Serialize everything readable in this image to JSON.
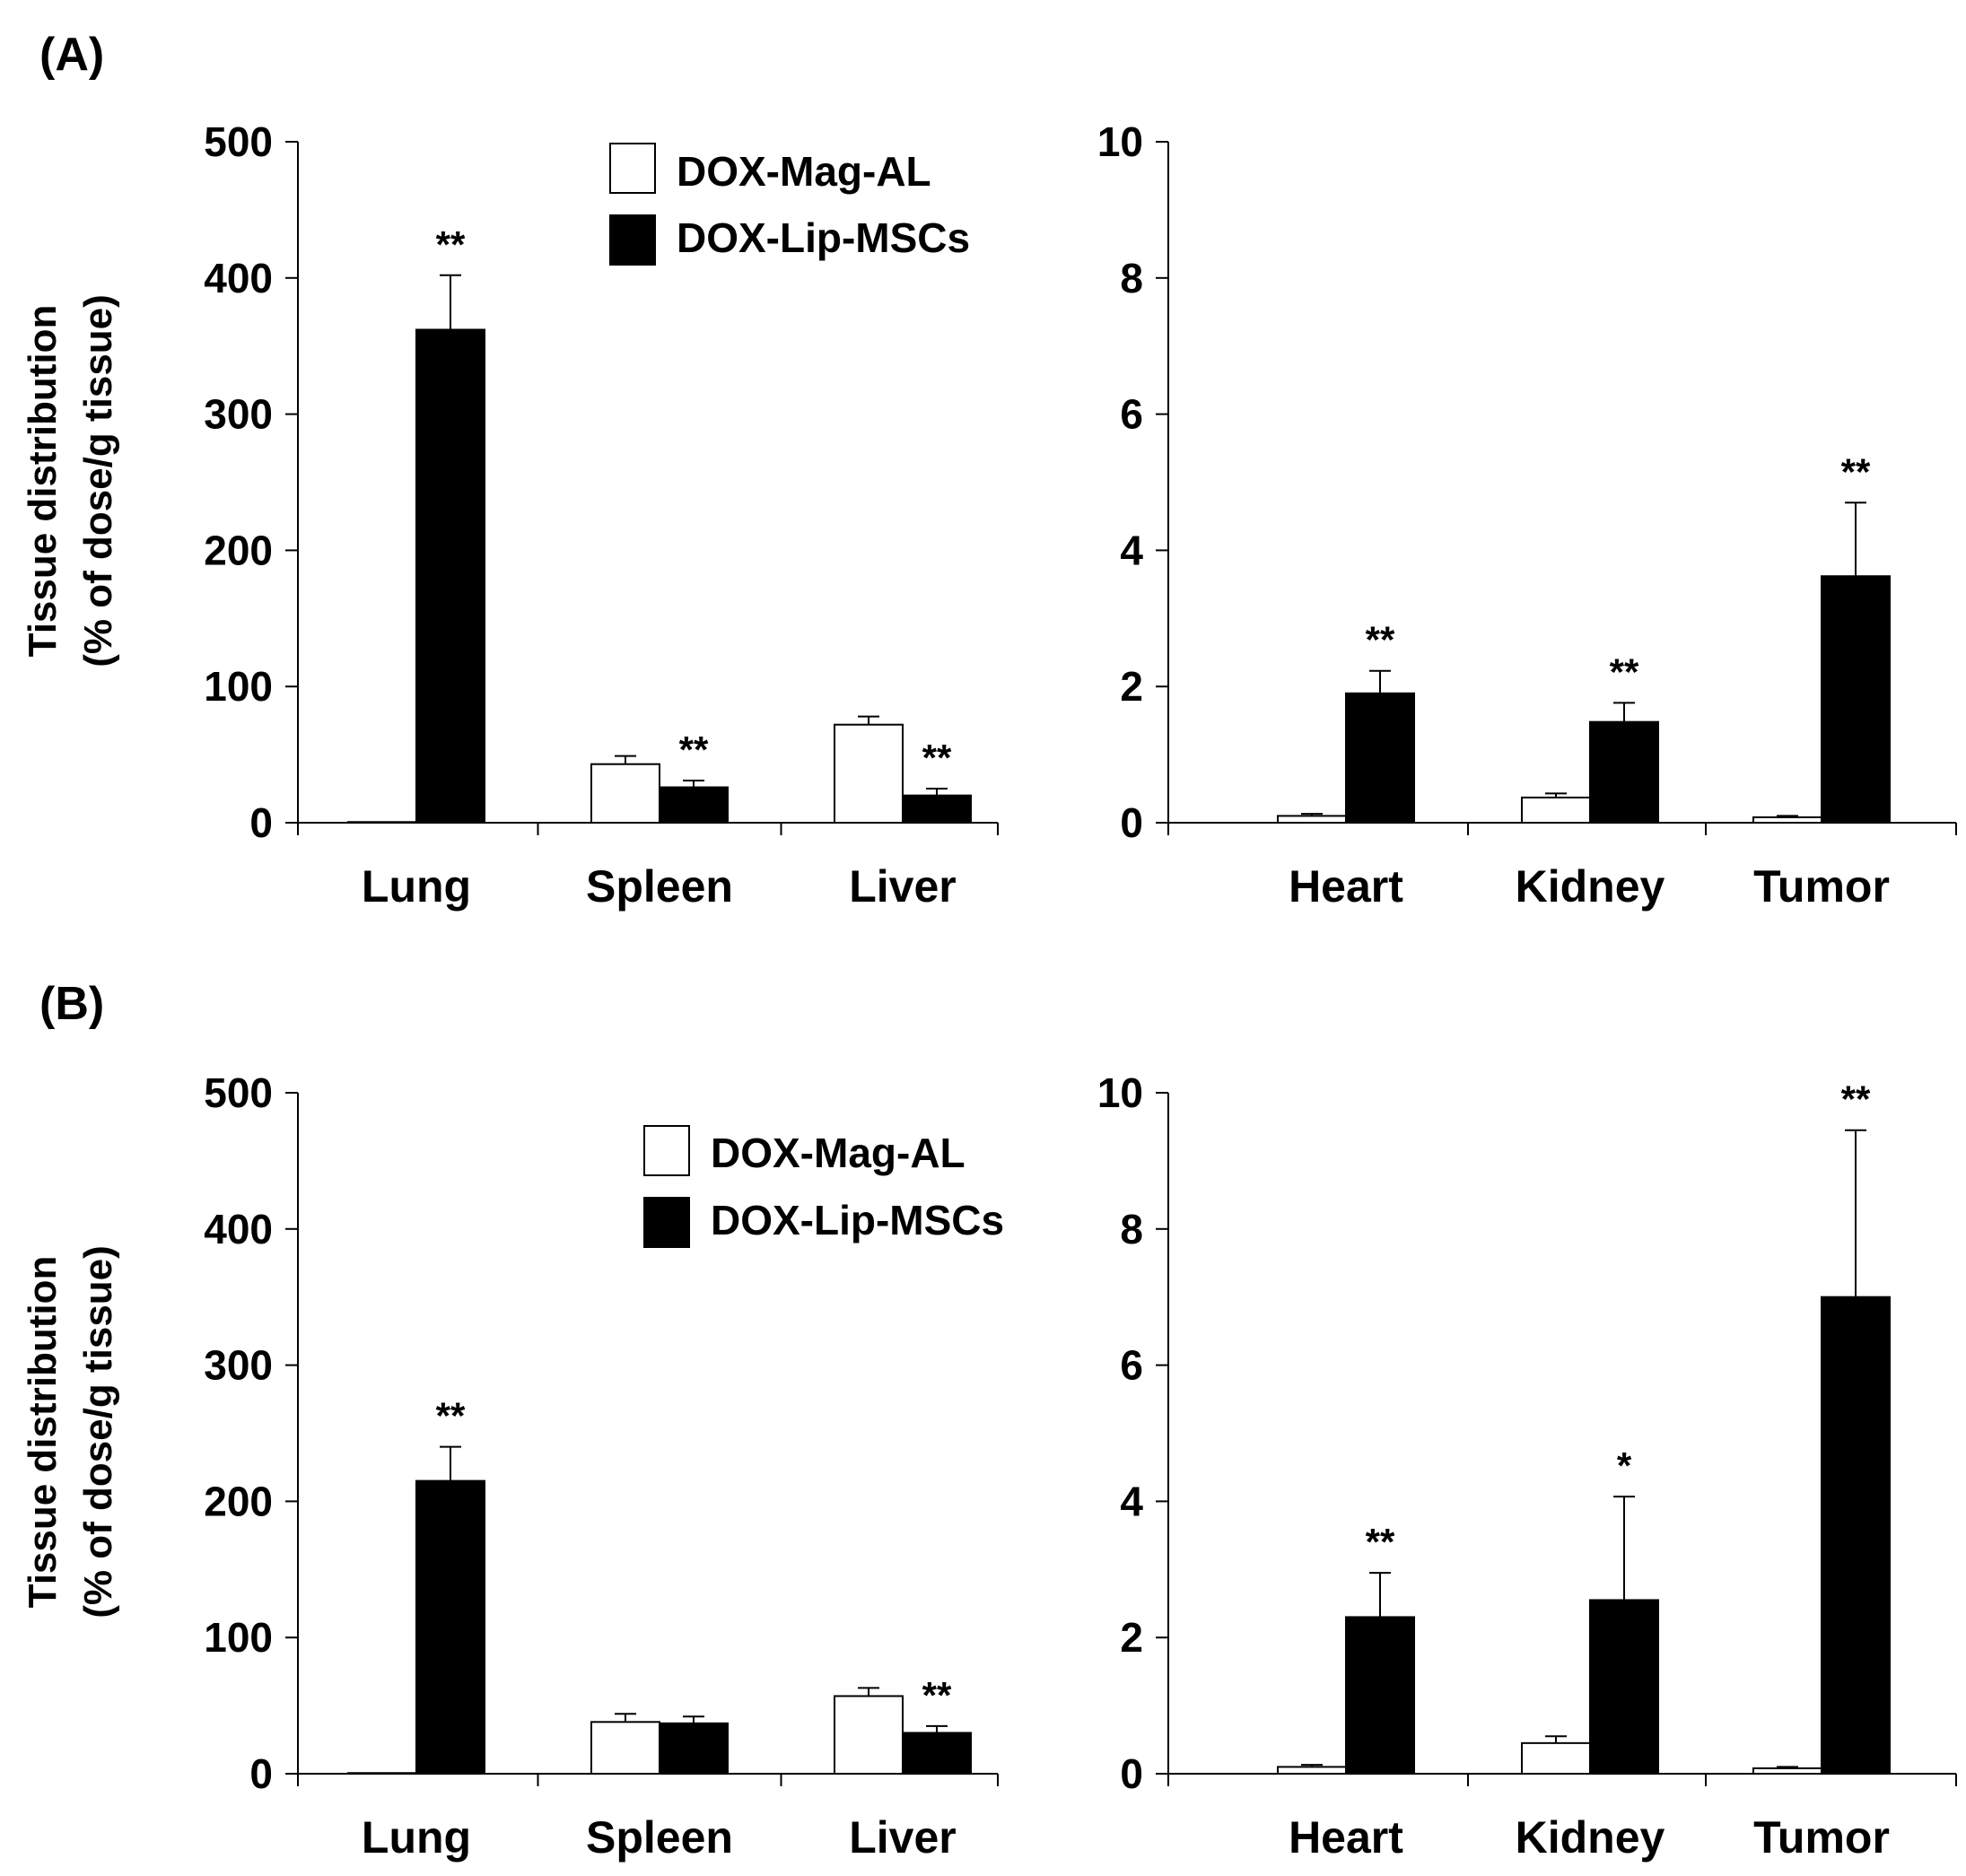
{
  "figure": {
    "panels": [
      {
        "label": "(A)",
        "ylabel_line1": "Tissue distribution",
        "ylabel_line2": "(% of dose/g tissue)"
      },
      {
        "label": "(B)",
        "ylabel_line1": "Tissue distribution",
        "ylabel_line2": "(% of dose/g tissue)"
      }
    ],
    "colors": {
      "DOX-Mag-AL": "#ffffff",
      "DOX-Lip-MSCs": "#000000",
      "axis": "#000000"
    }
  },
  "chart_data": [
    {
      "type": "bar",
      "panel": "A",
      "subplot": "left",
      "title": "",
      "xlabel": "",
      "ylabel": "Tissue distribution (% of dose/g tissue)",
      "categories": [
        "Lung",
        "Spleen",
        "Liver"
      ],
      "ylim": [
        0,
        500
      ],
      "yticks": [
        "0",
        "100",
        "200",
        "300",
        "400",
        "500"
      ],
      "legend": {
        "placement": "top-right",
        "entries": [
          "DOX-Mag-AL",
          "DOX-Lip-MSCs"
        ]
      },
      "series": [
        {
          "name": "DOX-Mag-AL",
          "values": [
            0.5,
            43,
            72
          ],
          "errors": [
            0,
            6,
            6
          ],
          "sig": [
            "",
            "",
            ""
          ]
        },
        {
          "name": "DOX-Lip-MSCs",
          "values": [
            362,
            26,
            20
          ],
          "errors": [
            40,
            5,
            5
          ],
          "sig": [
            "**",
            "**",
            "**"
          ]
        }
      ]
    },
    {
      "type": "bar",
      "panel": "A",
      "subplot": "right",
      "title": "",
      "xlabel": "",
      "ylabel": "",
      "categories": [
        "Heart",
        "Kidney",
        "Tumor"
      ],
      "ylim": [
        0,
        10
      ],
      "yticks": [
        "0",
        "2",
        "4",
        "6",
        "8",
        "10"
      ],
      "series": [
        {
          "name": "DOX-Mag-AL",
          "values": [
            0.1,
            0.37,
            0.08
          ],
          "errors": [
            0.03,
            0.06,
            0.02
          ],
          "sig": [
            "",
            "",
            ""
          ]
        },
        {
          "name": "DOX-Lip-MSCs",
          "values": [
            1.9,
            1.48,
            3.62
          ],
          "errors": [
            0.33,
            0.28,
            1.08
          ],
          "sig": [
            "**",
            "**",
            "**"
          ]
        }
      ]
    },
    {
      "type": "bar",
      "panel": "B",
      "subplot": "left",
      "title": "",
      "xlabel": "",
      "ylabel": "Tissue distribution (% of dose/g tissue)",
      "categories": [
        "Lung",
        "Spleen",
        "Liver"
      ],
      "ylim": [
        0,
        500
      ],
      "yticks": [
        "0",
        "100",
        "200",
        "300",
        "400",
        "500"
      ],
      "legend": {
        "placement": "top-right",
        "entries": [
          "DOX-Mag-AL",
          "DOX-Lip-MSCs"
        ]
      },
      "series": [
        {
          "name": "DOX-Mag-AL",
          "values": [
            0.5,
            38,
            57
          ],
          "errors": [
            0,
            6,
            6
          ],
          "sig": [
            "",
            "",
            ""
          ]
        },
        {
          "name": "DOX-Lip-MSCs",
          "values": [
            215,
            37,
            30
          ],
          "errors": [
            25,
            5,
            5
          ],
          "sig": [
            "**",
            "",
            "**"
          ]
        }
      ]
    },
    {
      "type": "bar",
      "panel": "B",
      "subplot": "right",
      "title": "",
      "xlabel": "",
      "ylabel": "",
      "categories": [
        "Heart",
        "Kidney",
        "Tumor"
      ],
      "ylim": [
        0,
        10
      ],
      "yticks": [
        "0",
        "2",
        "4",
        "6",
        "8",
        "10"
      ],
      "series": [
        {
          "name": "DOX-Mag-AL",
          "values": [
            0.1,
            0.45,
            0.08
          ],
          "errors": [
            0.03,
            0.1,
            0.02
          ],
          "sig": [
            "",
            "",
            ""
          ]
        },
        {
          "name": "DOX-Lip-MSCs",
          "values": [
            2.3,
            2.55,
            7.0
          ],
          "errors": [
            0.65,
            1.52,
            2.45
          ],
          "sig": [
            "**",
            "*",
            "**"
          ]
        }
      ]
    }
  ]
}
